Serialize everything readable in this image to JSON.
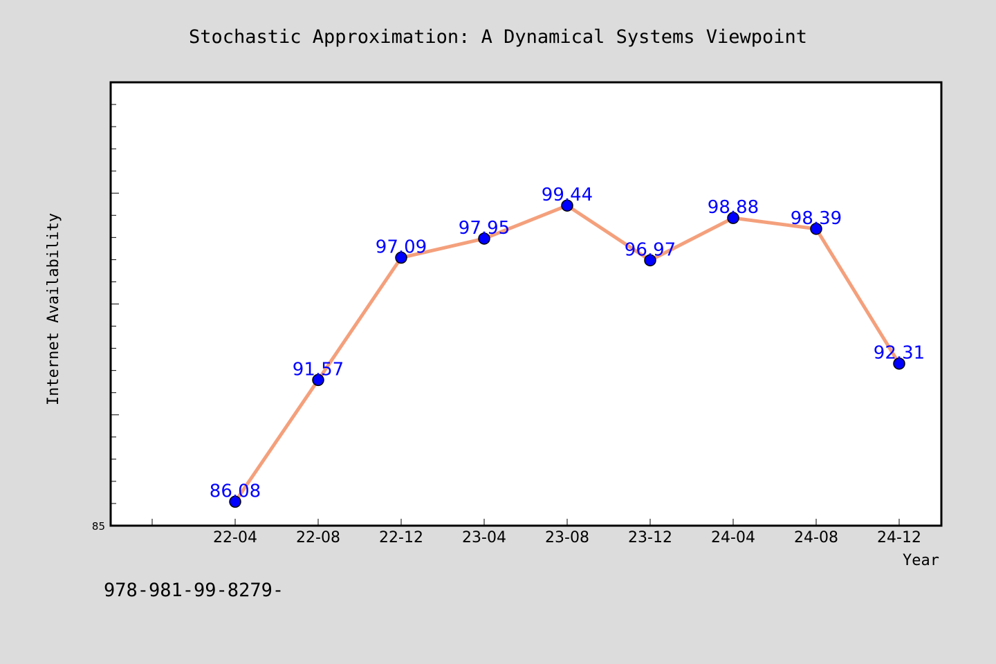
{
  "chart_data": {
    "type": "line",
    "title": "Stochastic Approximation: A Dynamical Systems Viewpoint",
    "xlabel": "Year",
    "ylabel": "Internet Availability",
    "categories": [
      "22-04",
      "22-08",
      "22-12",
      "23-04",
      "23-08",
      "23-12",
      "24-04",
      "24-08",
      "24-12"
    ],
    "series": [
      {
        "values": [
          86.08,
          91.57,
          97.09,
          97.95,
          99.44,
          96.97,
          98.88,
          98.39,
          92.31
        ],
        "data_labels": [
          "86.08",
          "91.57",
          "97.09",
          "97.95",
          "99.44",
          "96.97",
          "98.88",
          "98.39",
          "92.31"
        ]
      }
    ],
    "ylim": [
      85,
      105
    ],
    "y_tick_labels": [
      "85"
    ],
    "grid": false,
    "legend": "none",
    "colors": {
      "line": "#f4a07c",
      "marker": "#0000ff",
      "data_label": "#0000ff",
      "plot_background": "#ffffff",
      "page_background": "#dcdcdc"
    }
  },
  "footer": {
    "text": "978-981-99-8279-"
  }
}
